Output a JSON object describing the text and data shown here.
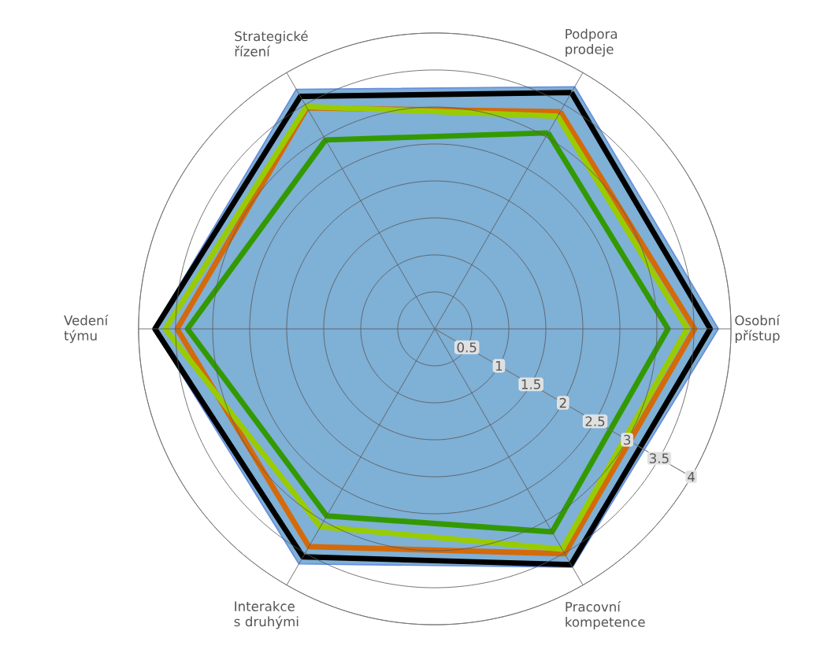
{
  "chart_data": {
    "type": "radar",
    "categories": [
      "Podpora prodeje",
      "Osobní přístup",
      "Pracovní kompetence",
      "Interakce s druhými",
      "Vedení týmu",
      "Strategické řízení"
    ],
    "series": [
      {
        "type": "area",
        "color": "#7fb0d6",
        "values": [
          3.78,
          3.83,
          3.72,
          3.67,
          3.8,
          3.74
        ]
      },
      {
        "color": "#339900",
        "values": [
          3.06,
          3.15,
          3.17,
          2.92,
          3.34,
          2.95
        ]
      },
      {
        "color": "#d46a0a",
        "values": [
          3.39,
          3.51,
          3.51,
          3.4,
          3.48,
          3.45
        ]
      },
      {
        "color": "#99cc00",
        "values": [
          3.32,
          3.41,
          3.44,
          3.09,
          3.64,
          3.47
        ]
      },
      {
        "color": "#000000",
        "values": [
          3.69,
          3.72,
          3.68,
          3.56,
          3.78,
          3.63
        ]
      }
    ],
    "ylim": [
      0,
      4
    ],
    "yticks": [
      0.5,
      1,
      1.5,
      2,
      2.5,
      3,
      3.5,
      4
    ],
    "grid": true
  }
}
